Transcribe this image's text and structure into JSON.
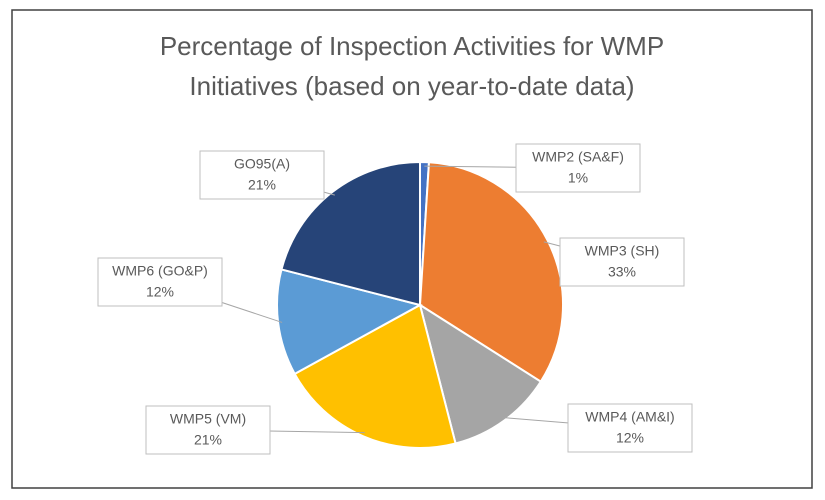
{
  "chart_data": {
    "type": "pie",
    "title": [
      "Percentage of Inspection Activities for WMP",
      "Initiatives (based on year-to-date data)"
    ],
    "categories": [
      "WMP2 (SA&F)",
      "WMP3 (SH)",
      "WMP4 (AM&I)",
      "WMP5 (VM)",
      "WMP6 (GO&P)",
      "GO95(A)"
    ],
    "values": [
      1,
      33,
      12,
      21,
      12,
      21
    ],
    "value_labels": [
      "1%",
      "33%",
      "12%",
      "21%",
      "12%",
      "21%"
    ],
    "colors": [
      "#4472c4",
      "#ed7d31",
      "#a5a5a5",
      "#ffc000",
      "#5b9bd5",
      "#264478"
    ]
  }
}
